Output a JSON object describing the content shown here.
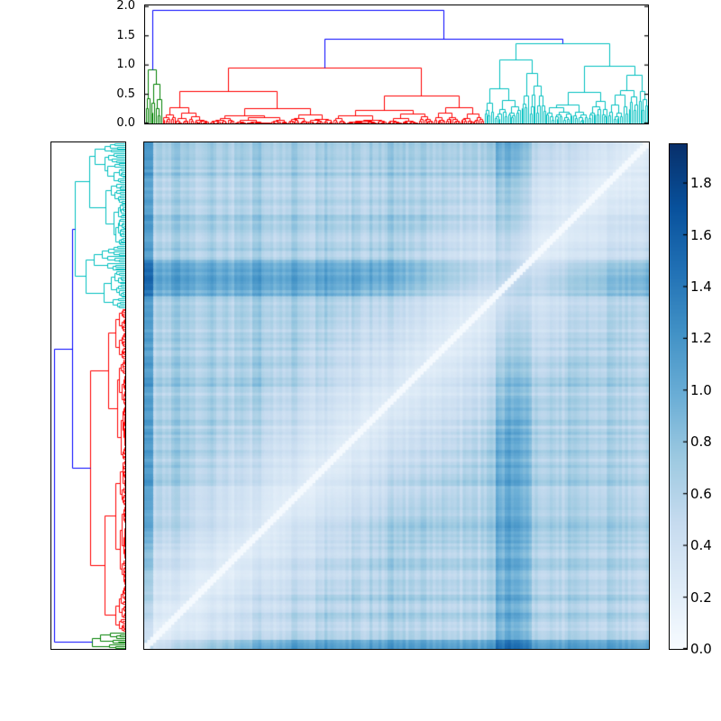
{
  "figure": {
    "background": "#ffffff",
    "kind": "hierarchically clustered distance-matrix heatmap with dendrograms"
  },
  "chart_data": {
    "type": "heatmap",
    "title": "",
    "xlabel": "",
    "ylabel": "",
    "colormap": {
      "name": "Blues",
      "stops": [
        [
          0.0,
          "#f7fbff"
        ],
        [
          0.125,
          "#deebf7"
        ],
        [
          0.25,
          "#c6dbef"
        ],
        [
          0.375,
          "#9ecae1"
        ],
        [
          0.5,
          "#6baed6"
        ],
        [
          0.625,
          "#4292c6"
        ],
        [
          0.75,
          "#2171b5"
        ],
        [
          0.875,
          "#08519c"
        ],
        [
          1.0,
          "#08306b"
        ]
      ]
    },
    "vmin": 0.0,
    "vmax": 1.95,
    "colorbar": {
      "tick_labels": [
        "0.0",
        "0.2",
        "0.4",
        "0.6",
        "0.8",
        "1.0",
        "1.2",
        "1.4",
        "1.6",
        "1.8"
      ],
      "tick_values": [
        0.0,
        0.2,
        0.4,
        0.6,
        0.8,
        1.0,
        1.2,
        1.4,
        1.6,
        1.8
      ],
      "position": "right"
    },
    "top_dendrogram": {
      "axis_ticks": [
        "0.0",
        "0.5",
        "1.0",
        "1.5",
        "2.0"
      ],
      "axis_tick_values": [
        0.0,
        0.5,
        1.0,
        1.5,
        2.0
      ],
      "ylim": [
        0.0,
        2.02
      ],
      "link_color": "#0000ff",
      "clusters": [
        {
          "name": "green",
          "color": "#008000",
          "leaves": 10,
          "root_height": 0.92
        },
        {
          "name": "red",
          "color": "#ff0000",
          "leaves": 192,
          "root_height": 0.95
        },
        {
          "name": "cyan",
          "color": "#00bfbf",
          "leaves": 98,
          "root_height": 1.38
        }
      ],
      "joins": [
        {
          "id": "join0",
          "height": 1.45,
          "children": [
            "red",
            "cyan"
          ]
        },
        {
          "id": "join1",
          "height": 1.95,
          "children": [
            "green",
            "join0"
          ]
        }
      ]
    },
    "left_dendrogram": {
      "orientation": "left",
      "leaf_order": "reversed (cyan top, red middle, green bottom)",
      "xlim": [
        0.0,
        2.02
      ],
      "link_color": "#0000ff"
    },
    "matrix": {
      "n_items_estimate": 300,
      "diagonal": "white (zero self-distance), runs bottom-left to top-right",
      "profile_resolution": 56,
      "col_profile": [
        1.55,
        0.62,
        0.68,
        0.8,
        0.72,
        0.6,
        0.55,
        0.75,
        0.65,
        0.58,
        0.72,
        0.6,
        0.82,
        0.7,
        0.58,
        0.65,
        0.75,
        0.6,
        0.55,
        0.68,
        0.78,
        0.62,
        0.58,
        0.72,
        0.6,
        0.66,
        0.58,
        0.8,
        0.68,
        0.6,
        0.74,
        0.62,
        0.56,
        0.7,
        0.64,
        0.58,
        0.66,
        0.6,
        0.72,
        1.3,
        1.45,
        1.38,
        1.2,
        0.6,
        0.52,
        0.64,
        0.56,
        0.7,
        0.55,
        0.62,
        0.5,
        0.66,
        0.58,
        0.52,
        0.6,
        0.55
      ],
      "row_profile": [
        0.68,
        0.72,
        0.62,
        0.7,
        0.6,
        0.52,
        0.64,
        0.56,
        0.72,
        0.6,
        0.55,
        0.68,
        0.62,
        1.2,
        1.4,
        1.48,
        1.3,
        0.7,
        0.58,
        0.66,
        0.6,
        0.74,
        0.62,
        0.56,
        0.7,
        0.62,
        0.8,
        0.58,
        0.66,
        0.6,
        0.72,
        0.58,
        0.64,
        0.55,
        0.78,
        0.62,
        0.58,
        0.72,
        0.6,
        0.68,
        0.55,
        0.62,
        0.75,
        0.58,
        0.65,
        0.6,
        0.7,
        0.56,
        0.64,
        0.58,
        0.72,
        0.6,
        0.66,
        0.55,
        0.62,
        1.5
      ]
    }
  }
}
